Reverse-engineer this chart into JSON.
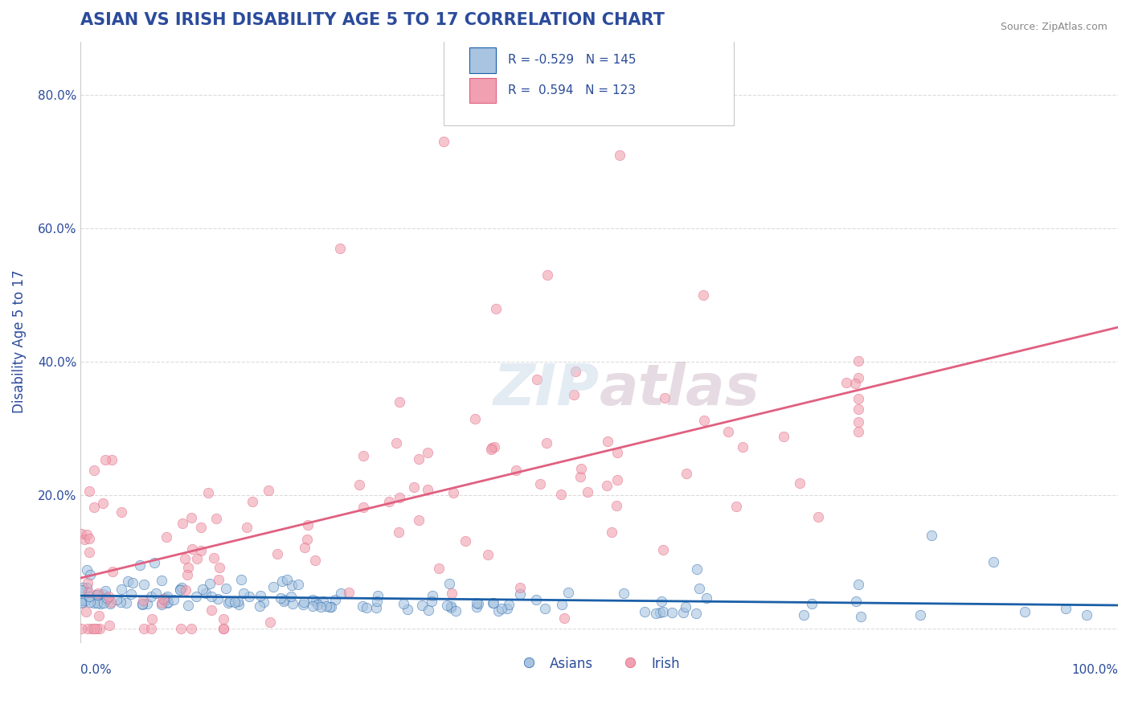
{
  "title": "ASIAN VS IRISH DISABILITY AGE 5 TO 17 CORRELATION CHART",
  "source": "Source: ZipAtlas.com",
  "ylabel": "Disability Age 5 to 17",
  "xlim": [
    0.0,
    1.0
  ],
  "ylim": [
    -0.02,
    0.88
  ],
  "yticks": [
    0.0,
    0.2,
    0.4,
    0.6,
    0.8
  ],
  "ytick_labels": [
    "",
    "20.0%",
    "40.0%",
    "60.0%",
    "80.0%"
  ],
  "title_color": "#2b4b9b",
  "title_fontsize": 15,
  "background_color": "#ffffff",
  "grid_color": "#cccccc",
  "legend_r_asian": "-0.529",
  "legend_n_asian": "145",
  "legend_r_irish": "0.594",
  "legend_n_irish": "123",
  "asian_color": "#a8c4e0",
  "irish_color": "#f0a0b0",
  "asian_line_color": "#1a5fa8",
  "irish_line_color": "#e06080",
  "asian_r": -0.529,
  "asian_n": 145,
  "irish_r": 0.594,
  "irish_n": 123,
  "legend_label_color": "#2b4b9b"
}
